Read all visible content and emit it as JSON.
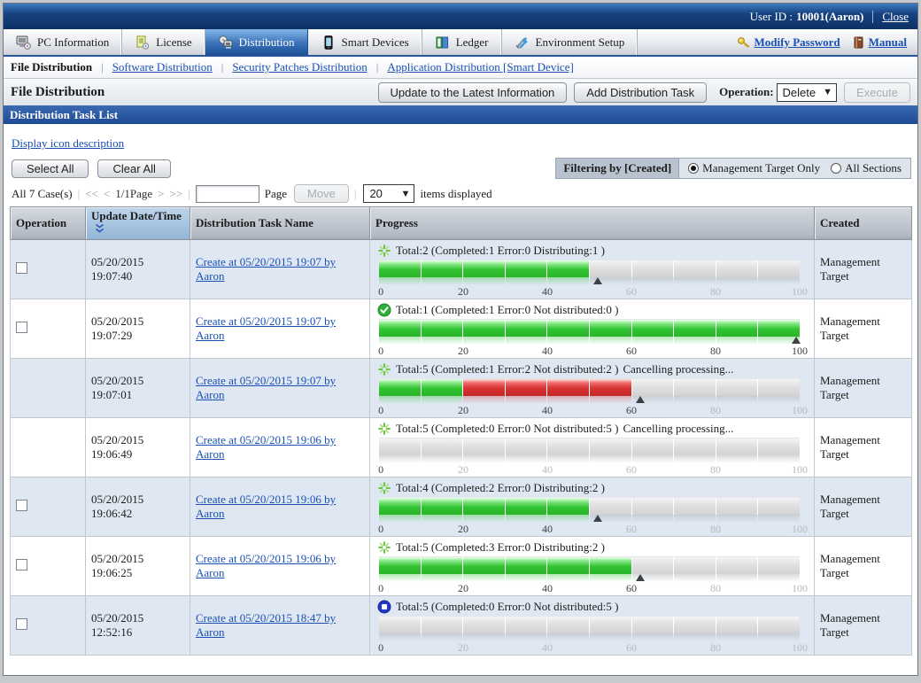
{
  "topbar": {
    "user_label": "User ID :",
    "user_value": "10001(Aaron)",
    "close_label": "Close"
  },
  "tabs": [
    {
      "label": "PC Information",
      "icon": "pc-information-icon",
      "active": false
    },
    {
      "label": "License",
      "icon": "license-icon",
      "active": false
    },
    {
      "label": "Distribution",
      "icon": "distribution-icon",
      "active": true
    },
    {
      "label": "Smart Devices",
      "icon": "smart-devices-icon",
      "active": false
    },
    {
      "label": "Ledger",
      "icon": "ledger-icon",
      "active": false
    },
    {
      "label": "Environment Setup",
      "icon": "environment-setup-icon",
      "active": false
    }
  ],
  "toolbar_links": [
    {
      "label": "Modify Password",
      "icon": "key-icon"
    },
    {
      "label": "Manual",
      "icon": "manual-book-icon"
    }
  ],
  "subnav": {
    "current": "File Distribution",
    "links": [
      "Software Distribution",
      "Security Patches Distribution",
      "Application Distribution [Smart Device]"
    ]
  },
  "page": {
    "title": "File Distribution",
    "update_button": "Update to the Latest Information",
    "add_button": "Add Distribution Task",
    "operation_label": "Operation:",
    "operation_value": "Delete",
    "execute_button": "Execute"
  },
  "section": {
    "title": "Distribution Task List"
  },
  "controls": {
    "icon_description_link": "Display icon description",
    "select_all": "Select All",
    "clear_all": "Clear All",
    "filter_label": "Filtering by [Created]",
    "radio_options": [
      "Management Target Only",
      "All Sections"
    ],
    "radio_selected": "Management Target Only"
  },
  "pagination": {
    "total": "All 7 Case(s)",
    "first": "<<",
    "prev": "<",
    "page_info": "1/1Page",
    "next": ">",
    "last": ">>",
    "page_label": "Page",
    "move_button": "Move",
    "page_size": "20",
    "items_label": "items displayed"
  },
  "table": {
    "headers": [
      "Operation",
      "Update Date/Time",
      "Distribution Task Name",
      "Progress",
      "Created"
    ],
    "sorted_header": "Update Date/Time",
    "scale_ticks": [
      0,
      20,
      40,
      60,
      80,
      100
    ],
    "status_colors": {
      "green": "#31c431",
      "red": "#d63232",
      "empty": "#d9d9d9"
    },
    "rows": [
      {
        "checkbox": true,
        "updated": "05/20/2015 19:07:40",
        "task": "Create at 05/20/2015 19:07 by Aaron",
        "icon": "distributing-spinner-icon",
        "status": "Total:2  (Completed:1  Error:0  Distributing:1 )",
        "note": "",
        "green": 5,
        "red": 0,
        "marker": 52,
        "created": "Management Target"
      },
      {
        "checkbox": true,
        "updated": "05/20/2015 19:07:29",
        "task": "Create at 05/20/2015 19:07 by Aaron",
        "icon": "completed-check-icon",
        "status": "Total:1  (Completed:1  Error:0  Not distributed:0 )",
        "note": "",
        "green": 10,
        "red": 0,
        "marker": 100,
        "created": "Management Target"
      },
      {
        "checkbox": false,
        "updated": "05/20/2015 19:07:01",
        "task": "Create at 05/20/2015 19:07 by Aaron",
        "icon": "distributing-spinner-icon",
        "status": "Total:5  (Completed:1  Error:2  Not distributed:2 )",
        "note": "Cancelling processing...",
        "green": 2,
        "red": 4,
        "marker": 62,
        "created": "Management Target"
      },
      {
        "checkbox": false,
        "updated": "05/20/2015 19:06:49",
        "task": "Create at 05/20/2015 19:06 by Aaron",
        "icon": "distributing-spinner-icon",
        "status": "Total:5  (Completed:0  Error:0  Not distributed:5 )",
        "note": "Cancelling processing...",
        "green": 0,
        "red": 0,
        "marker": null,
        "created": "Management Target"
      },
      {
        "checkbox": true,
        "updated": "05/20/2015 19:06:42",
        "task": "Create at 05/20/2015 19:06 by Aaron",
        "icon": "distributing-spinner-icon",
        "status": "Total:4  (Completed:2  Error:0  Distributing:2 )",
        "note": "",
        "green": 5,
        "red": 0,
        "marker": 52,
        "created": "Management Target"
      },
      {
        "checkbox": true,
        "updated": "05/20/2015 19:06:25",
        "task": "Create at 05/20/2015 19:06 by Aaron",
        "icon": "distributing-spinner-icon",
        "status": "Total:5  (Completed:3  Error:0  Distributing:2 )",
        "note": "",
        "green": 6,
        "red": 0,
        "marker": 62,
        "created": "Management Target"
      },
      {
        "checkbox": true,
        "updated": "05/20/2015 12:52:16",
        "task": "Create at 05/20/2015 18:47 by Aaron",
        "icon": "stopped-icon",
        "status": "Total:5  (Completed:0  Error:0  Not distributed:5 )",
        "note": "",
        "green": 0,
        "red": 0,
        "marker": null,
        "created": "Management Target"
      }
    ]
  }
}
